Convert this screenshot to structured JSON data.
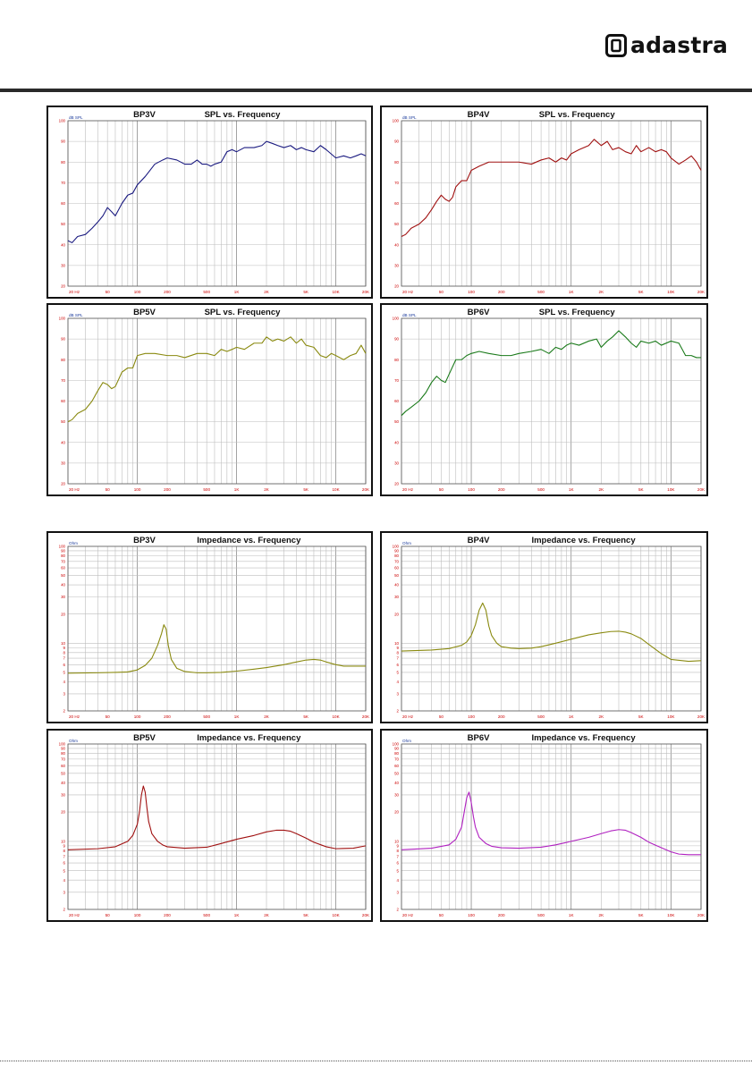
{
  "brand": {
    "name": "adastra"
  },
  "colors": {
    "rule": "#2a2a2a",
    "tick_label": "#cc0000",
    "axis_label": "#1a3a9a"
  },
  "chart_data": [
    {
      "type": "line",
      "model": "BP3V",
      "title": "SPL vs. Frequency",
      "ylabel": "dB SPL",
      "xscale": "log",
      "xlim": [
        20,
        20000
      ],
      "ylim": [
        20,
        100
      ],
      "grid": true,
      "color": "#1a1a80",
      "x_ticks": [
        20,
        50,
        100,
        200,
        500,
        1000,
        2000,
        5000,
        10000,
        20000
      ],
      "x_tick_labels": [
        "20 Hz",
        "50",
        "100",
        "200",
        "500",
        "1K",
        "2K",
        "5K",
        "10K",
        "20K"
      ],
      "y_ticks": [
        20,
        30,
        40,
        50,
        60,
        70,
        80,
        90,
        100
      ],
      "y_tick_labels": [
        "20",
        "30",
        "40",
        "50",
        "60",
        "70",
        "80",
        "90",
        "100"
      ],
      "x": [
        20,
        22,
        25,
        30,
        35,
        40,
        45,
        50,
        55,
        60,
        70,
        80,
        90,
        100,
        120,
        150,
        180,
        200,
        250,
        300,
        350,
        400,
        450,
        500,
        550,
        600,
        700,
        800,
        900,
        1000,
        1200,
        1500,
        1800,
        2000,
        2300,
        2600,
        3000,
        3500,
        4000,
        4500,
        5000,
        6000,
        7000,
        8000,
        10000,
        12000,
        14000,
        16000,
        18000,
        20000
      ],
      "y": [
        42,
        41,
        44,
        45,
        48,
        51,
        54,
        58,
        56,
        54,
        60,
        64,
        65,
        69,
        73,
        79,
        81,
        82,
        81,
        79,
        79,
        81,
        79,
        79,
        78,
        79,
        80,
        85,
        86,
        85,
        87,
        87,
        88,
        90,
        89,
        88,
        87,
        88,
        86,
        87,
        86,
        85,
        88,
        86,
        82,
        83,
        82,
        83,
        84,
        83
      ]
    },
    {
      "type": "line",
      "model": "BP4V",
      "title": "SPL vs. Frequency",
      "ylabel": "dB SPL",
      "xscale": "log",
      "xlim": [
        20,
        20000
      ],
      "ylim": [
        20,
        100
      ],
      "grid": true,
      "color": "#a01010",
      "x_ticks": [
        20,
        50,
        100,
        200,
        500,
        1000,
        2000,
        5000,
        10000,
        20000
      ],
      "x_tick_labels": [
        "20 Hz",
        "50",
        "100",
        "200",
        "500",
        "1K",
        "2K",
        "5K",
        "10K",
        "20K"
      ],
      "y_ticks": [
        20,
        30,
        40,
        50,
        60,
        70,
        80,
        90,
        100
      ],
      "y_tick_labels": [
        "20",
        "30",
        "40",
        "50",
        "60",
        "70",
        "80",
        "90",
        "100"
      ],
      "x": [
        20,
        22,
        25,
        30,
        35,
        40,
        45,
        50,
        55,
        60,
        65,
        70,
        80,
        90,
        100,
        120,
        150,
        180,
        200,
        250,
        300,
        400,
        500,
        600,
        700,
        800,
        900,
        1000,
        1200,
        1500,
        1700,
        2000,
        2300,
        2600,
        3000,
        3500,
        4000,
        4500,
        5000,
        6000,
        7000,
        8000,
        9000,
        10000,
        12000,
        14000,
        16000,
        18000,
        20000
      ],
      "y": [
        44,
        45,
        48,
        50,
        53,
        57,
        61,
        64,
        62,
        61,
        63,
        68,
        71,
        71,
        76,
        78,
        80,
        80,
        80,
        80,
        80,
        79,
        81,
        82,
        80,
        82,
        81,
        84,
        86,
        88,
        91,
        88,
        90,
        86,
        87,
        85,
        84,
        88,
        85,
        87,
        85,
        86,
        85,
        82,
        79,
        81,
        83,
        80,
        76
      ]
    },
    {
      "type": "line",
      "model": "BP5V",
      "title": "SPL vs. Frequency",
      "ylabel": "dB SPL",
      "xscale": "log",
      "xlim": [
        20,
        20000
      ],
      "ylim": [
        20,
        100
      ],
      "grid": true,
      "color": "#8a8a10",
      "x_ticks": [
        20,
        50,
        100,
        200,
        500,
        1000,
        2000,
        5000,
        10000,
        20000
      ],
      "x_tick_labels": [
        "20 Hz",
        "50",
        "100",
        "200",
        "500",
        "1K",
        "2K",
        "5K",
        "10K",
        "20K"
      ],
      "y_ticks": [
        20,
        30,
        40,
        50,
        60,
        70,
        80,
        90,
        100
      ],
      "y_tick_labels": [
        "20",
        "30",
        "40",
        "50",
        "60",
        "70",
        "80",
        "90",
        "100"
      ],
      "x": [
        20,
        22,
        25,
        30,
        35,
        40,
        45,
        50,
        55,
        60,
        70,
        80,
        90,
        100,
        120,
        150,
        200,
        250,
        300,
        400,
        500,
        600,
        700,
        800,
        900,
        1000,
        1200,
        1500,
        1800,
        2000,
        2300,
        2600,
        3000,
        3500,
        4000,
        4500,
        5000,
        6000,
        7000,
        8000,
        9000,
        10000,
        12000,
        14000,
        16000,
        18000,
        20000
      ],
      "y": [
        50,
        51,
        54,
        56,
        60,
        65,
        69,
        68,
        66,
        67,
        74,
        76,
        76,
        82,
        83,
        83,
        82,
        82,
        81,
        83,
        83,
        82,
        85,
        84,
        85,
        86,
        85,
        88,
        88,
        91,
        89,
        90,
        89,
        91,
        88,
        90,
        87,
        86,
        82,
        81,
        83,
        82,
        80,
        82,
        83,
        87,
        83
      ]
    },
    {
      "type": "line",
      "model": "BP6V",
      "title": "SPL vs. Frequency",
      "ylabel": "dB SPL",
      "xscale": "log",
      "xlim": [
        20,
        20000
      ],
      "ylim": [
        20,
        100
      ],
      "grid": true,
      "color": "#1a7a1a",
      "x_ticks": [
        20,
        50,
        100,
        200,
        500,
        1000,
        2000,
        5000,
        10000,
        20000
      ],
      "x_tick_labels": [
        "20 Hz",
        "50",
        "100",
        "200",
        "500",
        "1K",
        "2K",
        "5K",
        "10K",
        "20K"
      ],
      "y_ticks": [
        20,
        30,
        40,
        50,
        60,
        70,
        80,
        90,
        100
      ],
      "y_tick_labels": [
        "20",
        "30",
        "40",
        "50",
        "60",
        "70",
        "80",
        "90",
        "100"
      ],
      "x": [
        20,
        22,
        25,
        30,
        35,
        40,
        45,
        50,
        55,
        60,
        70,
        80,
        90,
        100,
        120,
        150,
        200,
        250,
        300,
        400,
        500,
        600,
        700,
        800,
        900,
        1000,
        1200,
        1500,
        1800,
        2000,
        2300,
        2600,
        3000,
        3500,
        4000,
        4500,
        5000,
        6000,
        7000,
        8000,
        10000,
        12000,
        14000,
        16000,
        18000,
        20000
      ],
      "y": [
        53,
        55,
        57,
        60,
        64,
        69,
        72,
        70,
        69,
        73,
        80,
        80,
        82,
        83,
        84,
        83,
        82,
        82,
        83,
        84,
        85,
        83,
        86,
        85,
        87,
        88,
        87,
        89,
        90,
        86,
        89,
        91,
        94,
        91,
        88,
        86,
        89,
        88,
        89,
        87,
        89,
        88,
        82,
        82,
        81,
        81
      ]
    },
    {
      "type": "line",
      "model": "BP3V",
      "title": "Impedance vs. Frequency",
      "ylabel": "Ohm",
      "xscale": "log",
      "yscale": "log",
      "xlim": [
        20,
        20000
      ],
      "ylim": [
        2,
        100
      ],
      "grid": true,
      "color": "#8a8a10",
      "x_ticks": [
        20,
        50,
        100,
        200,
        500,
        1000,
        2000,
        5000,
        10000,
        20000
      ],
      "x_tick_labels": [
        "20 Hz",
        "50",
        "100",
        "200",
        "500",
        "1K",
        "2K",
        "5K",
        "10K",
        "20K"
      ],
      "y_ticks": [
        2,
        3,
        4,
        5,
        6,
        7,
        8,
        9,
        10,
        20,
        30,
        40,
        50,
        60,
        70,
        80,
        90,
        100
      ],
      "y_tick_labels": [
        "2",
        "3",
        "4",
        "5",
        "6",
        "7",
        "8",
        "9",
        "10",
        "20",
        "30",
        "40",
        "50",
        "60",
        "70",
        "80",
        "90",
        "100"
      ],
      "x": [
        20,
        40,
        60,
        80,
        100,
        120,
        140,
        160,
        175,
        185,
        195,
        205,
        220,
        250,
        300,
        400,
        500,
        700,
        1000,
        1500,
        2000,
        3000,
        4000,
        5000,
        6000,
        7000,
        8000,
        10000,
        12000,
        15000,
        20000
      ],
      "y": [
        4.9,
        4.95,
        5.0,
        5.05,
        5.3,
        5.9,
        7.0,
        9.5,
        12.5,
        15.5,
        14.0,
        9.5,
        6.8,
        5.5,
        5.1,
        4.95,
        4.95,
        5.0,
        5.15,
        5.4,
        5.6,
        6.0,
        6.4,
        6.7,
        6.8,
        6.7,
        6.4,
        6.0,
        5.8,
        5.8,
        5.8
      ]
    },
    {
      "type": "line",
      "model": "BP4V",
      "title": "Impedance vs. Frequency",
      "ylabel": "Ohm",
      "xscale": "log",
      "yscale": "log",
      "xlim": [
        20,
        20000
      ],
      "ylim": [
        2,
        100
      ],
      "grid": true,
      "color": "#8a8a10",
      "x_ticks": [
        20,
        50,
        100,
        200,
        500,
        1000,
        2000,
        5000,
        10000,
        20000
      ],
      "x_tick_labels": [
        "20 Hz",
        "50",
        "100",
        "200",
        "500",
        "1K",
        "2K",
        "5K",
        "10K",
        "20K"
      ],
      "y_ticks": [
        2,
        3,
        4,
        5,
        6,
        7,
        8,
        9,
        10,
        20,
        30,
        40,
        50,
        60,
        70,
        80,
        90,
        100
      ],
      "y_tick_labels": [
        "2",
        "3",
        "4",
        "5",
        "6",
        "7",
        "8",
        "9",
        "10",
        "20",
        "30",
        "40",
        "50",
        "60",
        "70",
        "80",
        "90",
        "100"
      ],
      "x": [
        20,
        40,
        60,
        80,
        90,
        100,
        110,
        120,
        130,
        140,
        150,
        160,
        180,
        200,
        250,
        300,
        400,
        500,
        700,
        1000,
        1500,
        2000,
        2500,
        3000,
        3500,
        4000,
        5000,
        6000,
        8000,
        10000,
        15000,
        20000
      ],
      "y": [
        8.3,
        8.5,
        8.8,
        9.5,
        10.3,
        12.0,
        15.5,
        22.0,
        26.0,
        22.0,
        15.0,
        12.0,
        10.0,
        9.2,
        8.9,
        8.8,
        8.9,
        9.2,
        10.0,
        11.0,
        12.2,
        12.8,
        13.2,
        13.3,
        13.0,
        12.5,
        11.2,
        9.7,
        7.8,
        6.8,
        6.5,
        6.6
      ]
    },
    {
      "type": "line",
      "model": "BP5V",
      "title": "Impedance vs. Frequency",
      "ylabel": "Ohm",
      "xscale": "log",
      "yscale": "log",
      "xlim": [
        20,
        20000
      ],
      "ylim": [
        2,
        100
      ],
      "grid": true,
      "color": "#a01010",
      "x_ticks": [
        20,
        50,
        100,
        200,
        500,
        1000,
        2000,
        5000,
        10000,
        20000
      ],
      "x_tick_labels": [
        "20 Hz",
        "50",
        "100",
        "200",
        "500",
        "1K",
        "2K",
        "5K",
        "10K",
        "20K"
      ],
      "y_ticks": [
        2,
        3,
        4,
        5,
        6,
        7,
        8,
        9,
        10,
        20,
        30,
        40,
        50,
        60,
        70,
        80,
        90,
        100
      ],
      "y_tick_labels": [
        "2",
        "3",
        "4",
        "5",
        "6",
        "7",
        "8",
        "9",
        "10",
        "20",
        "30",
        "40",
        "50",
        "60",
        "70",
        "80",
        "90",
        "100"
      ],
      "x": [
        20,
        40,
        60,
        80,
        90,
        100,
        105,
        110,
        115,
        120,
        125,
        130,
        140,
        160,
        180,
        200,
        300,
        500,
        700,
        1000,
        1500,
        2000,
        2500,
        3000,
        3500,
        4000,
        5000,
        6000,
        8000,
        10000,
        15000,
        20000
      ],
      "y": [
        8.2,
        8.4,
        8.8,
        10.0,
        11.5,
        15.0,
        20.0,
        30.0,
        37.0,
        32.0,
        22.0,
        16.0,
        12.0,
        10.0,
        9.2,
        8.8,
        8.5,
        8.7,
        9.5,
        10.5,
        11.5,
        12.5,
        13.0,
        13.0,
        12.7,
        12.0,
        10.8,
        9.8,
        8.8,
        8.4,
        8.5,
        9.0
      ]
    },
    {
      "type": "line",
      "model": "BP6V",
      "title": "Impedance vs. Frequency",
      "ylabel": "Ohm",
      "xscale": "log",
      "yscale": "log",
      "xlim": [
        20,
        20000
      ],
      "ylim": [
        2,
        100
      ],
      "grid": true,
      "color": "#b020c0",
      "x_ticks": [
        20,
        50,
        100,
        200,
        500,
        1000,
        2000,
        5000,
        10000,
        20000
      ],
      "x_tick_labels": [
        "20 Hz",
        "50",
        "100",
        "200",
        "500",
        "1K",
        "2K",
        "5K",
        "10K",
        "20K"
      ],
      "y_ticks": [
        2,
        3,
        4,
        5,
        6,
        7,
        8,
        9,
        10,
        20,
        30,
        40,
        50,
        60,
        70,
        80,
        90,
        100
      ],
      "y_tick_labels": [
        "2",
        "3",
        "4",
        "5",
        "6",
        "7",
        "8",
        "9",
        "10",
        "20",
        "30",
        "40",
        "50",
        "60",
        "70",
        "80",
        "90",
        "100"
      ],
      "x": [
        20,
        40,
        60,
        70,
        80,
        85,
        90,
        95,
        100,
        105,
        110,
        120,
        140,
        160,
        200,
        300,
        500,
        700,
        1000,
        1500,
        2000,
        2500,
        3000,
        3500,
        4000,
        5000,
        6000,
        8000,
        10000,
        12000,
        15000,
        20000
      ],
      "y": [
        8.2,
        8.5,
        9.2,
        10.5,
        14.0,
        20.0,
        28.0,
        32.0,
        25.0,
        18.0,
        14.0,
        11.0,
        9.5,
        8.9,
        8.6,
        8.5,
        8.7,
        9.2,
        10.0,
        11.0,
        12.0,
        12.8,
        13.2,
        13.0,
        12.3,
        11.0,
        9.8,
        8.6,
        7.8,
        7.4,
        7.3,
        7.3
      ]
    }
  ]
}
